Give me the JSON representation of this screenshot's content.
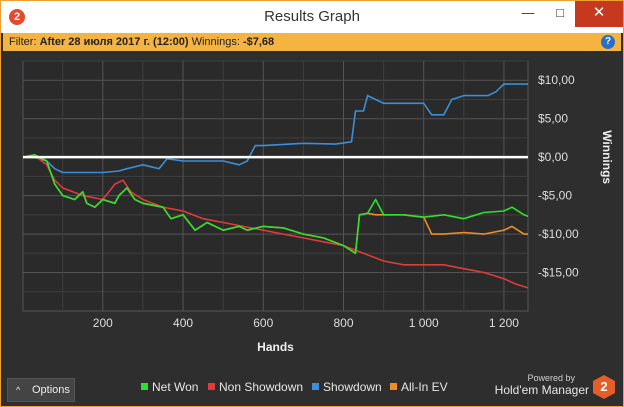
{
  "window": {
    "title": "Results Graph",
    "icon": "app-logo-icon",
    "app_icon_label": "2",
    "controls": {
      "minimize": "—",
      "maximize": "□",
      "close": "✕"
    }
  },
  "filter": {
    "prefix": "Filter:",
    "value": "After 28 июля 2017 г. (12:00)",
    "winnings_label": "Winnings:",
    "winnings_value": "-$7,68",
    "help": "?"
  },
  "options_button": {
    "chevron": "^",
    "label": "Options"
  },
  "branding": {
    "powered_by": "Powered by",
    "name": "Hold'em Manager",
    "logo_text": "2"
  },
  "colors": {
    "net_won": "#2ee02e",
    "non_showdown": "#e03a3a",
    "showdown": "#3b8fd6",
    "all_in_ev": "#f08c24",
    "zero_line": "#ffffff",
    "accent": "#f5b342"
  },
  "chart_data": {
    "type": "line",
    "xlabel": "Hands",
    "ylabel": "Winnings",
    "xlim": [
      1,
      1260
    ],
    "ylim": [
      -20,
      12.5
    ],
    "x_ticks": [
      200,
      400,
      600,
      800,
      1000,
      1200
    ],
    "x_tick_labels": [
      "200",
      "400",
      "600",
      "800",
      "1 000",
      "1 200"
    ],
    "y_ticks": [
      10,
      5,
      0,
      -5,
      -10,
      -15
    ],
    "y_tick_labels": [
      "$10,00",
      "$5,00",
      "$0,00",
      "-$5,00",
      "-$10,00",
      "-$15,00"
    ],
    "grid": true,
    "legend_position": "bottom",
    "series": [
      {
        "name": "Net Won",
        "color_key": "net_won",
        "x": [
          1,
          30,
          60,
          80,
          100,
          130,
          150,
          160,
          180,
          200,
          230,
          240,
          260,
          280,
          300,
          350,
          370,
          400,
          430,
          460,
          500,
          540,
          560,
          600,
          650,
          700,
          750,
          800,
          830,
          840,
          860,
          880,
          900,
          950,
          1000,
          1050,
          1100,
          1150,
          1200,
          1220,
          1250,
          1260
        ],
        "y": [
          0,
          0.3,
          -0.5,
          -3.5,
          -5,
          -5.5,
          -4.5,
          -6,
          -6.5,
          -5.5,
          -6,
          -5,
          -4,
          -5.5,
          -6,
          -6.5,
          -8,
          -7.5,
          -9.5,
          -8.5,
          -9.5,
          -9,
          -9.5,
          -9,
          -9.2,
          -10,
          -10.5,
          -11.5,
          -12.5,
          -7.5,
          -7.3,
          -5.5,
          -7.5,
          -7.5,
          -7.8,
          -7.5,
          -8,
          -7.2,
          -7,
          -6.5,
          -7.5,
          -7.7
        ]
      },
      {
        "name": "Non Showdown",
        "color_key": "non_showdown",
        "x": [
          1,
          30,
          60,
          80,
          100,
          150,
          200,
          230,
          250,
          270,
          300,
          350,
          400,
          450,
          500,
          550,
          600,
          650,
          700,
          750,
          800,
          850,
          900,
          950,
          1000,
          1050,
          1100,
          1150,
          1200,
          1230,
          1260
        ],
        "y": [
          0,
          0.2,
          -1,
          -3,
          -4,
          -5,
          -5.5,
          -3.5,
          -3,
          -4.5,
          -5.5,
          -6.5,
          -7,
          -8,
          -8.5,
          -9,
          -9.5,
          -10,
          -10.5,
          -11,
          -11.5,
          -12.5,
          -13.5,
          -14,
          -14,
          -14,
          -14.5,
          -15,
          -15.8,
          -16.5,
          -17
        ]
      },
      {
        "name": "Showdown",
        "color_key": "showdown",
        "x": [
          1,
          30,
          60,
          80,
          100,
          130,
          200,
          240,
          260,
          300,
          340,
          360,
          400,
          500,
          540,
          560,
          580,
          600,
          700,
          780,
          820,
          830,
          850,
          860,
          880,
          900,
          1000,
          1020,
          1050,
          1070,
          1100,
          1160,
          1180,
          1200,
          1260
        ],
        "y": [
          0,
          0,
          -0.5,
          -1.5,
          -2,
          -2,
          -2,
          -1.8,
          -1.5,
          -1,
          -1.5,
          -0.2,
          -0.5,
          -0.5,
          -1,
          -0.5,
          1.5,
          1.5,
          1.8,
          1.7,
          2,
          6,
          6,
          8,
          7.5,
          7,
          7,
          5.5,
          5.5,
          7.5,
          8,
          8,
          8.5,
          9.5,
          9.5
        ]
      },
      {
        "name": "All-In EV",
        "color_key": "all_in_ev",
        "x": [
          1,
          30,
          60,
          80,
          100,
          130,
          150,
          160,
          180,
          200,
          230,
          240,
          260,
          280,
          300,
          350,
          370,
          400,
          430,
          460,
          500,
          540,
          560,
          600,
          650,
          700,
          750,
          800,
          830,
          840,
          860,
          880,
          900,
          950,
          1000,
          1020,
          1050,
          1100,
          1150,
          1200,
          1220,
          1250,
          1260
        ],
        "y": [
          0,
          0.3,
          -0.5,
          -3.5,
          -5,
          -5.5,
          -4.5,
          -6,
          -6.5,
          -5.5,
          -6,
          -5,
          -4,
          -5.5,
          -6,
          -6.5,
          -8,
          -7.5,
          -9.5,
          -8.5,
          -9.5,
          -9,
          -9.5,
          -9,
          -9.2,
          -10,
          -10.5,
          -11.5,
          -12.5,
          -7.5,
          -7.3,
          -7.5,
          -7.5,
          -7.5,
          -7.8,
          -10,
          -10,
          -9.8,
          -10,
          -9.5,
          -9,
          -10,
          -10
        ]
      }
    ]
  }
}
